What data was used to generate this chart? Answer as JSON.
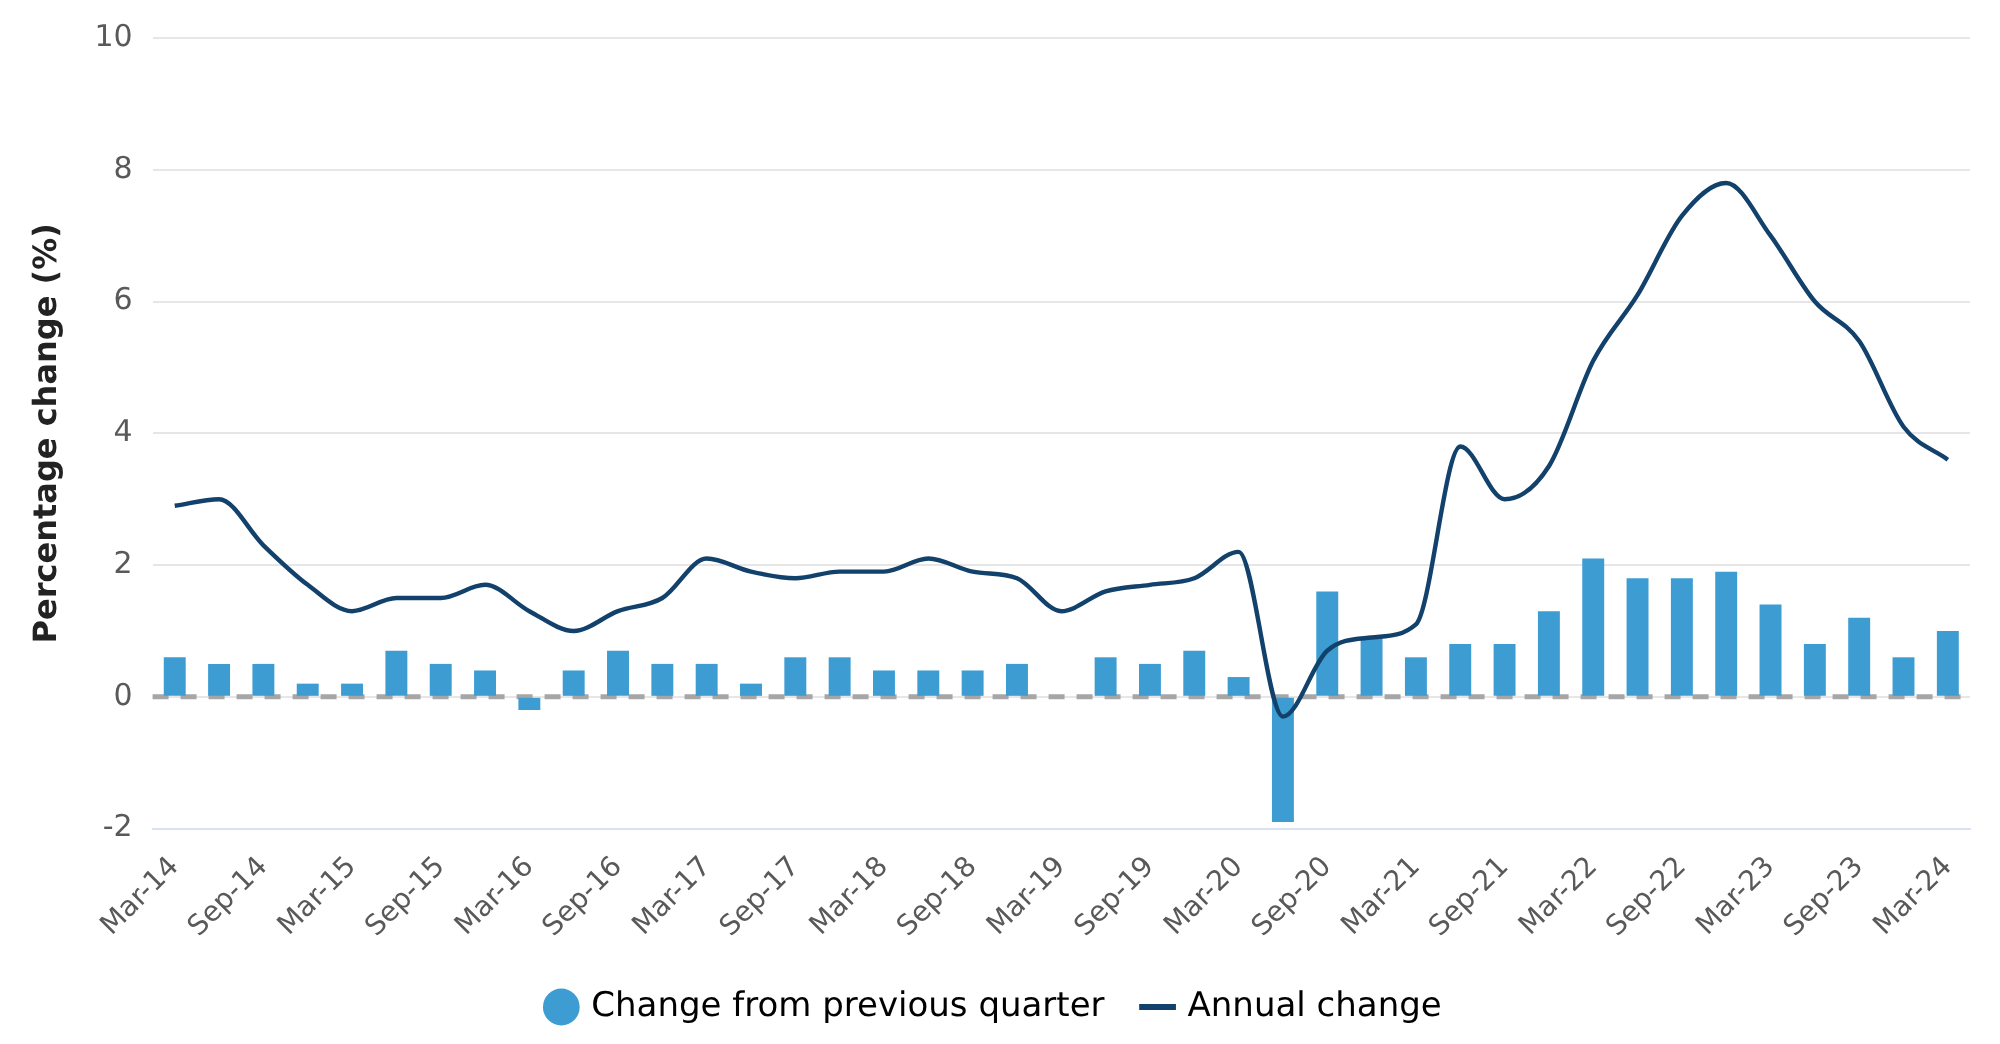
{
  "chart_data": {
    "type": "bar",
    "ylabel": "Percentage change (%)",
    "categories": [
      "Mar-14",
      null,
      "Sep-14",
      null,
      "Mar-15",
      null,
      "Sep-15",
      null,
      "Mar-16",
      null,
      "Sep-16",
      null,
      "Mar-17",
      null,
      "Sep-17",
      null,
      "Mar-18",
      null,
      "Sep-18",
      null,
      "Mar-19",
      null,
      "Sep-19",
      null,
      "Mar-20",
      null,
      "Sep-20",
      null,
      "Mar-21",
      null,
      "Sep-21",
      null,
      "Mar-22",
      null,
      "Sep-22",
      null,
      "Mar-23",
      null,
      "Sep-23",
      null,
      "Mar-24"
    ],
    "series": [
      {
        "name": "Change from previous quarter",
        "color": "#3d9dd3",
        "values": [
          0.6,
          0.5,
          0.5,
          0.2,
          0.2,
          0.7,
          0.5,
          0.4,
          -0.2,
          0.4,
          0.7,
          0.5,
          0.5,
          0.2,
          0.6,
          0.6,
          0.4,
          0.4,
          0.4,
          0.5,
          0.0,
          0.6,
          0.5,
          0.7,
          0.3,
          -1.9,
          1.6,
          0.9,
          0.6,
          0.8,
          0.8,
          1.3,
          2.1,
          1.8,
          1.8,
          1.9,
          1.4,
          0.8,
          1.2,
          0.6,
          1.0
        ]
      },
      {
        "name": "Annual change",
        "type": "line",
        "color": "#12416b",
        "values": [
          2.9,
          3.0,
          2.3,
          1.7,
          1.3,
          1.5,
          1.5,
          1.7,
          1.3,
          1.0,
          1.3,
          1.5,
          2.1,
          1.9,
          1.8,
          1.9,
          1.9,
          2.1,
          1.9,
          1.8,
          1.3,
          1.6,
          1.7,
          1.8,
          2.2,
          -0.3,
          0.7,
          0.9,
          1.1,
          3.8,
          3.0,
          3.5,
          5.1,
          6.1,
          7.3,
          7.8,
          7.0,
          6.0,
          5.4,
          4.1,
          3.6
        ]
      }
    ],
    "ylim": [
      -2,
      10
    ],
    "yticks": [
      -2,
      0,
      2,
      4,
      6,
      8,
      10
    ],
    "grid": "y",
    "legend": "bottom",
    "marker": "none",
    "line_style": "solid",
    "ref_lines": [
      {
        "axis": "y",
        "value": 0,
        "color": "#a6a6a6",
        "line_style": "dashed"
      }
    ]
  }
}
